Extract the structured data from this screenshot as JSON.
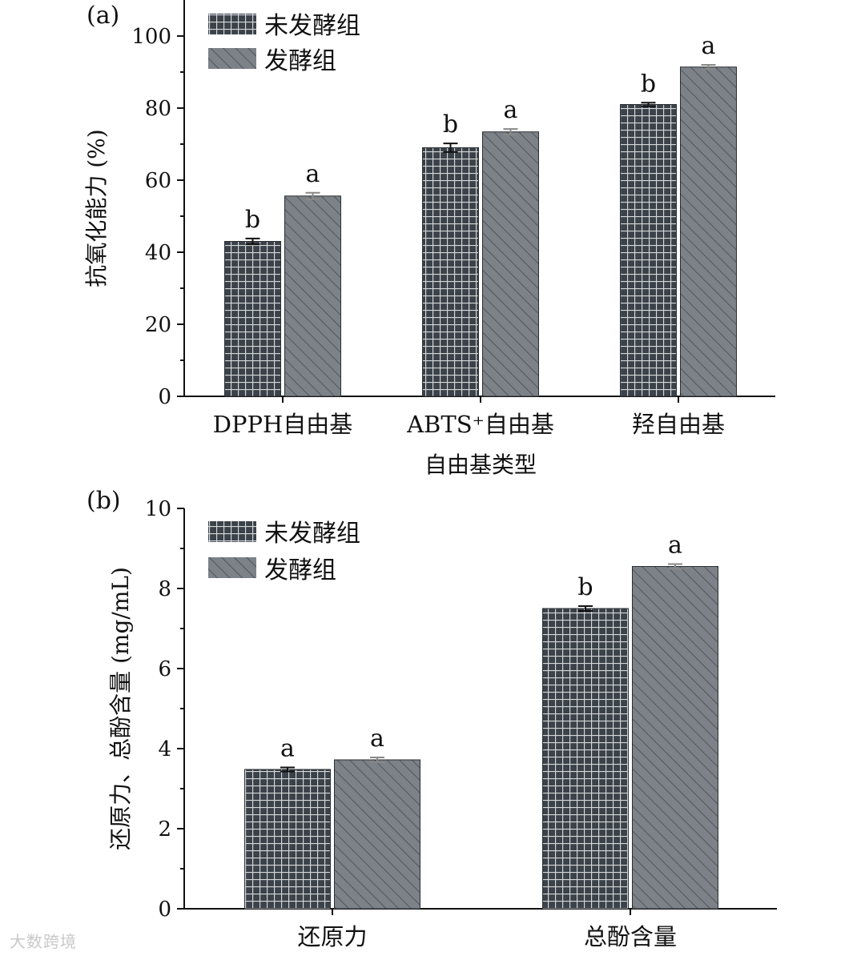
{
  "legend": {
    "series1": "未发酵组",
    "series2": "发酵组"
  },
  "colors": {
    "unfermented": "#3b4249",
    "fermented": "#7c8287",
    "axis": "#111111",
    "errorbar_light": "#c9c9c9"
  },
  "watermark": "大数跨境",
  "chart_data": [
    {
      "panel": "(a)",
      "type": "bar",
      "xlabel": "自由基类型",
      "ylabel": "抗氧化能力 (%)",
      "ylim": [
        0,
        110
      ],
      "yticks": [
        0,
        20,
        40,
        60,
        80,
        100
      ],
      "categories": [
        "DPPH自由基",
        "ABTS⁺自由基",
        "羟自由基"
      ],
      "series": [
        {
          "name": "未发酵组",
          "values": [
            43,
            69,
            81
          ],
          "errors": [
            0.8,
            1.2,
            0.5
          ],
          "labels": [
            "b",
            "b",
            "b"
          ]
        },
        {
          "name": "发酵组",
          "values": [
            55.6,
            73.4,
            91.4
          ],
          "errors": [
            0.9,
            0.8,
            0.6
          ],
          "labels": [
            "a",
            "a",
            "a"
          ]
        }
      ],
      "legend_position": "top-left"
    },
    {
      "panel": "(b)",
      "type": "bar",
      "xlabel": "",
      "ylabel": "还原力、总酚含量 (mg/mL)",
      "ylim": [
        0,
        10
      ],
      "yticks": [
        0,
        2,
        4,
        6,
        8,
        10
      ],
      "categories": [
        "还原力",
        "总酚含量"
      ],
      "series": [
        {
          "name": "未发酵组",
          "values": [
            3.48,
            7.5
          ],
          "errors": [
            0.05,
            0.06
          ],
          "labels": [
            "a",
            "b"
          ]
        },
        {
          "name": "发酵组",
          "values": [
            3.72,
            8.55
          ],
          "errors": [
            0.06,
            0.06
          ],
          "labels": [
            "a",
            "a"
          ]
        }
      ],
      "legend_position": "top-left"
    }
  ]
}
